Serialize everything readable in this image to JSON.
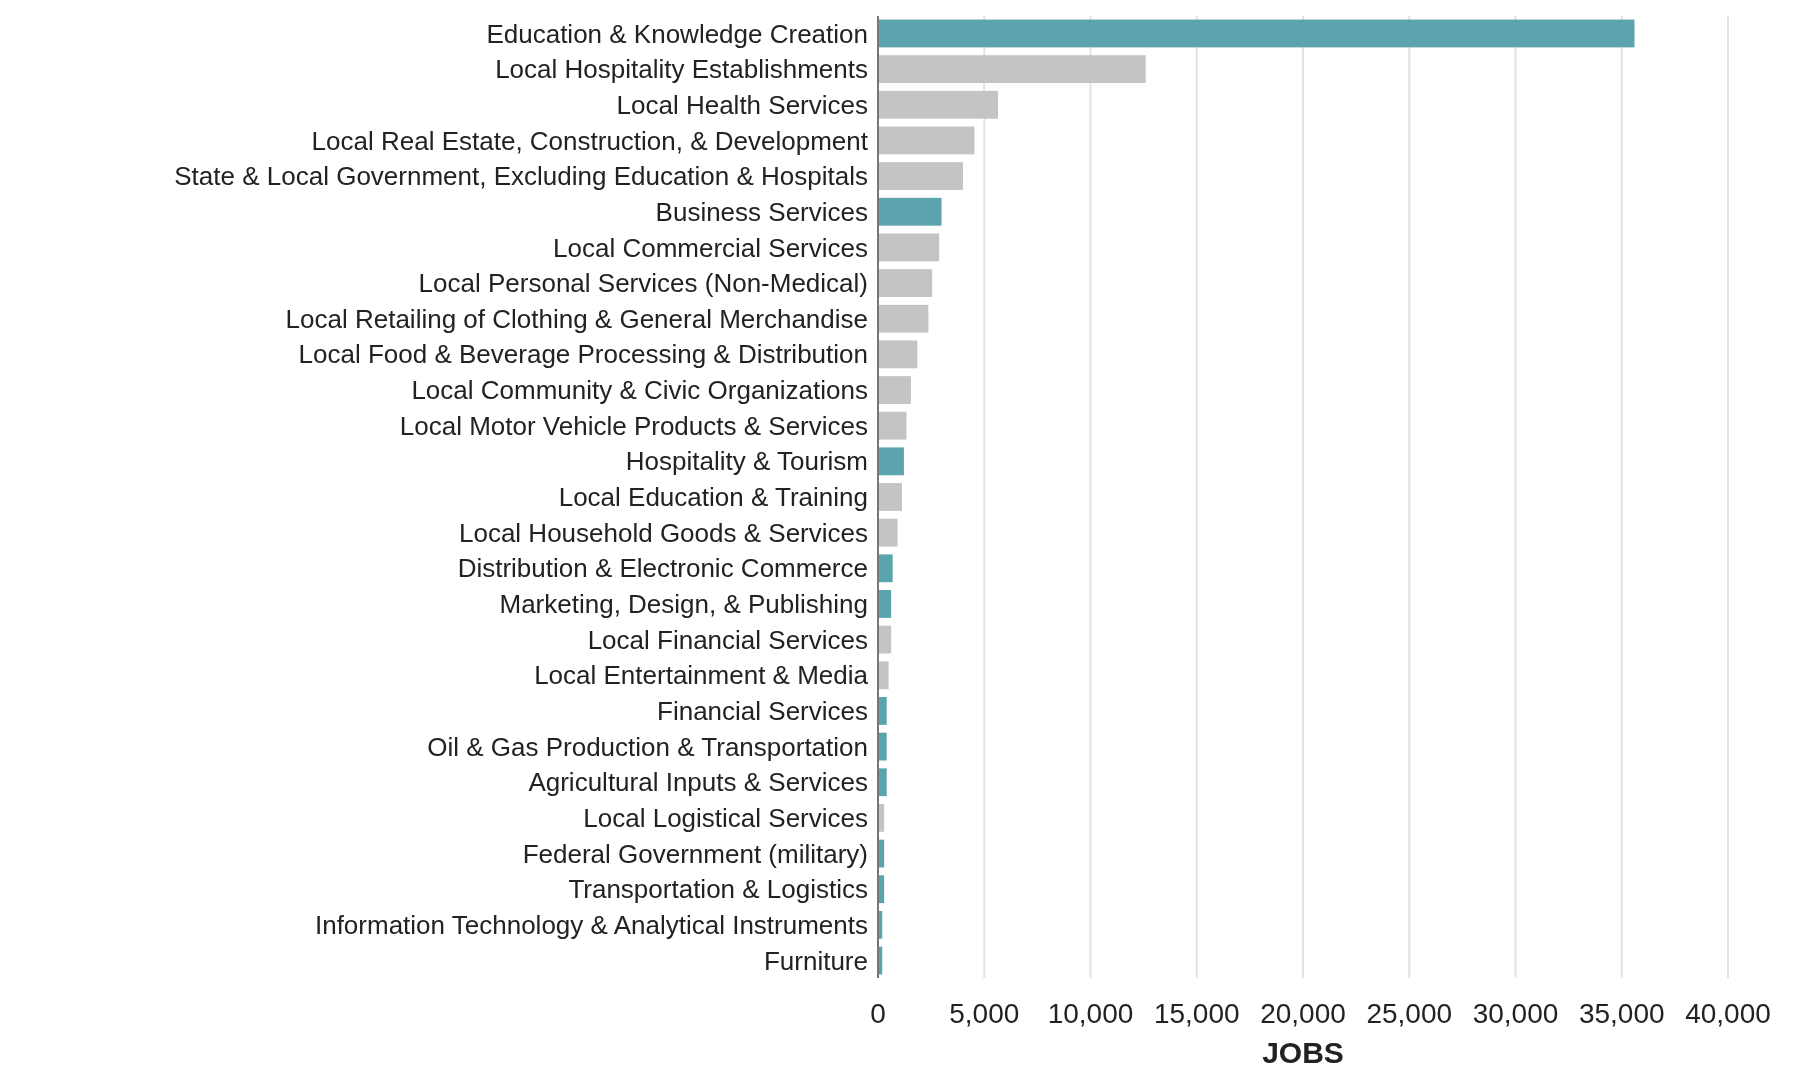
{
  "chart_data": {
    "type": "bar",
    "orientation": "horizontal",
    "xlabel": "JOBS",
    "categories": [
      "Education & Knowledge Creation",
      "Local Hospitality Establishments",
      "Local Health Services",
      "Local Real Estate, Construction, & Development",
      "State & Local Government, Excluding Education & Hospitals",
      "Business Services",
      "Local Commercial Services",
      "Local Personal Services (Non-Medical)",
      "Local Retailing of Clothing & General Merchandise",
      "Local Food & Beverage Processing & Distribution",
      "Local Community & Civic Organizations",
      "Local Motor Vehicle Products & Services",
      "Hospitality & Tourism",
      "Local Education & Training",
      "Local Household Goods & Services",
      "Distribution & Electronic Commerce",
      "Marketing, Design, & Publishing",
      "Local Financial Services",
      "Local Entertainment & Media",
      "Financial Services",
      "Oil & Gas Production & Transportation",
      "Agricultural Inputs & Services",
      "Local Logistical Services",
      "Federal Government (military)",
      "Transportation & Logistics",
      "Information Technology & Analytical Instruments",
      "Furniture"
    ],
    "values": [
      35600,
      12600,
      5650,
      4540,
      4000,
      2990,
      2880,
      2550,
      2370,
      1850,
      1550,
      1340,
      1220,
      1130,
      920,
      690,
      620,
      620,
      500,
      410,
      410,
      410,
      290,
      290,
      290,
      200,
      200
    ],
    "colors": [
      "#5ba4ad",
      "#c4c4c4",
      "#c4c4c4",
      "#c4c4c4",
      "#c4c4c4",
      "#5ba4ad",
      "#c4c4c4",
      "#c4c4c4",
      "#c4c4c4",
      "#c4c4c4",
      "#c4c4c4",
      "#c4c4c4",
      "#5ba4ad",
      "#c4c4c4",
      "#c4c4c4",
      "#5ba4ad",
      "#5ba4ad",
      "#c4c4c4",
      "#c4c4c4",
      "#5ba4ad",
      "#5ba4ad",
      "#5ba4ad",
      "#c4c4c4",
      "#5ba4ad",
      "#5ba4ad",
      "#5ba4ad",
      "#5ba4ad"
    ],
    "xlim": [
      0,
      40000
    ],
    "xticks": [
      {
        "value": 0,
        "label": "0"
      },
      {
        "value": 5000,
        "label": "5,000"
      },
      {
        "value": 10000,
        "label": "10,000"
      },
      {
        "value": 15000,
        "label": "15,000"
      },
      {
        "value": 20000,
        "label": "20,000"
      },
      {
        "value": 25000,
        "label": "25,000"
      },
      {
        "value": 30000,
        "label": "30,000"
      },
      {
        "value": 35000,
        "label": "35,000"
      },
      {
        "value": 40000,
        "label": "40,000"
      }
    ],
    "grid": "x"
  }
}
